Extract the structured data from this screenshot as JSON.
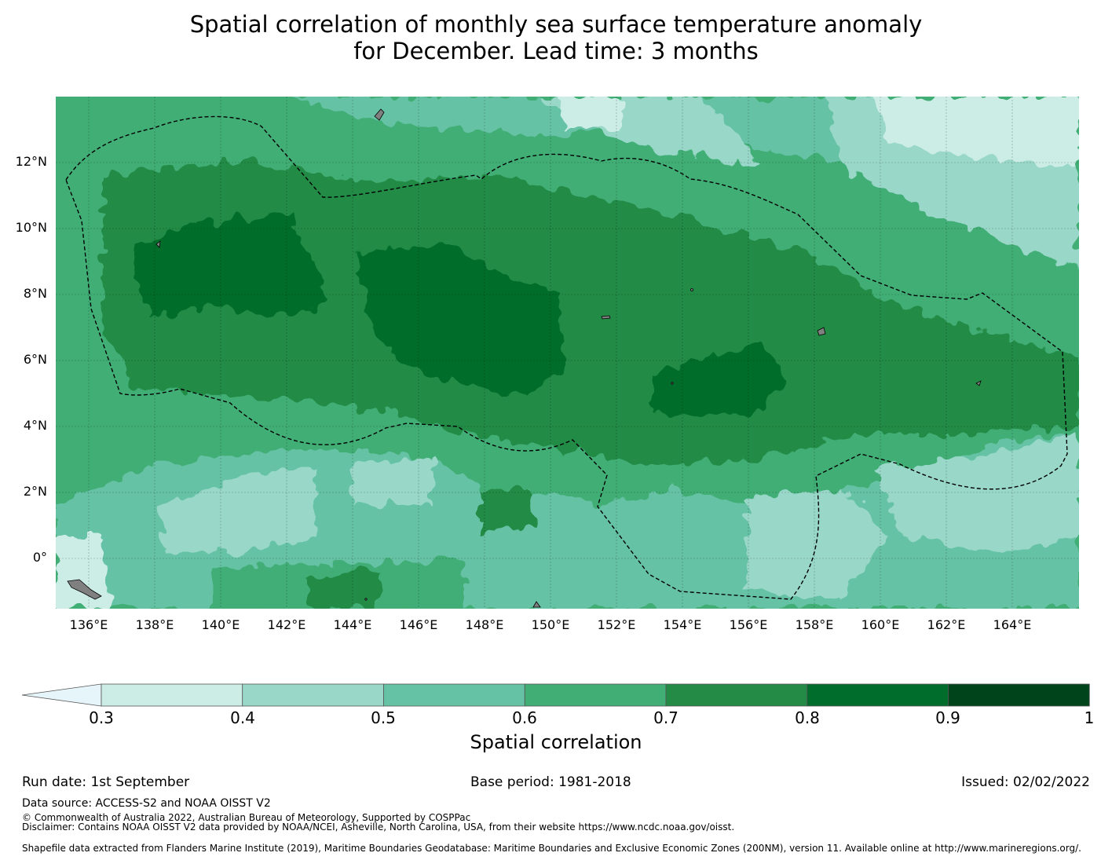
{
  "title": {
    "line1": "Spatial correlation of monthly sea surface temperature anomaly",
    "line2": "for December. Lead time: 3 months"
  },
  "map": {
    "lat_labels": [
      "12°N",
      "10°N",
      "8°N",
      "6°N",
      "4°N",
      "2°N",
      "0°"
    ],
    "lon_labels": [
      "136°E",
      "138°E",
      "140°E",
      "142°E",
      "144°E",
      "146°E",
      "148°E",
      "150°E",
      "152°E",
      "154°E",
      "156°E",
      "158°E",
      "160°E",
      "162°E",
      "164°E"
    ],
    "extent": {
      "lon_min": 135,
      "lon_max": 166,
      "lat_min": -1.5,
      "lat_max": 14
    },
    "land_color": "#808080",
    "eez_boundary_style": "dashed black"
  },
  "colorbar": {
    "tick_labels": [
      "0.3",
      "0.4",
      "0.5",
      "0.6",
      "0.7",
      "0.8",
      "0.9",
      "1"
    ],
    "colors": [
      "#e5f5f9",
      "#ccece6",
      "#99d8c9",
      "#66c2a4",
      "#41ae76",
      "#238b45",
      "#006d2c",
      "#00441b"
    ],
    "label": "Spatial correlation",
    "extend": "min"
  },
  "footer": {
    "run_date": "Run date: 1st September",
    "base_period": "Base period: 1981-2018",
    "issued": "Issued: 02/02/2022",
    "data_source": "Data source: ACCESS-S2 and NOAA OISST V2",
    "copyright": "© Commonwealth of Australia 2022, Australian Bureau of Meteorology, Supported by COSPPac",
    "disclaimer": "Disclaimer: Contains NOAA OISST V2 data provided by NOAA/NCEI, Asheville, North Carolina, USA, from their website https://www.ncdc.noaa.gov/oisst.",
    "shapefile": "Shapefile data extracted from Flanders Marine Institute (2019), Maritime Boundaries Geodatabase: Maritime Boundaries and Exclusive Economic Zones (200NM), version 11. Available online at http://www.marineregions.org/."
  }
}
